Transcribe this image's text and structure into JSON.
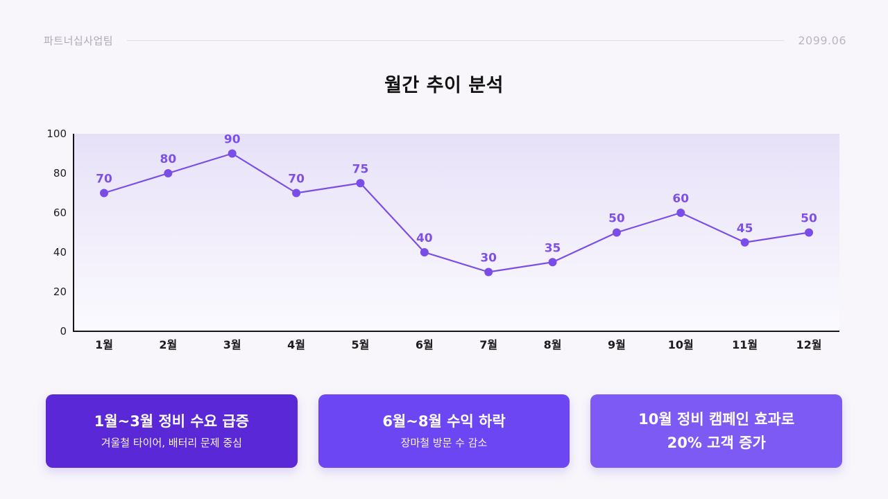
{
  "header": {
    "team": "파트너십사업팀",
    "date": "2099.06"
  },
  "title": "월간 추이 분석",
  "chart_data": {
    "type": "line",
    "title": "월간 추이 분석",
    "categories": [
      "1월",
      "2월",
      "3월",
      "4월",
      "5월",
      "6월",
      "7월",
      "8월",
      "9월",
      "10월",
      "11월",
      "12월"
    ],
    "values": [
      70,
      80,
      90,
      70,
      75,
      40,
      30,
      35,
      50,
      60,
      45,
      50
    ],
    "xlabel": "",
    "ylabel": "",
    "ylim": [
      0,
      100
    ],
    "yticks": [
      0,
      20,
      40,
      60,
      80,
      100
    ],
    "grid": false,
    "legend": false,
    "line_color": "#7B4DE8",
    "point_color": "#7B4DE8",
    "label_color": "#7E50E8",
    "axis_color": "#141414",
    "tick_color": "#1c1c1c",
    "plot_bg_top": "#E7E1F8",
    "plot_bg_bottom": "#FBFAFE"
  },
  "cards": [
    {
      "title": "1월~3월 정비 수요 급증",
      "subtitle": "겨울철 타이어, 배터리 문제 중심",
      "bg": "#5A28D6"
    },
    {
      "title": "6월~8월 수익 하락",
      "subtitle": "장마철 방문 수 감소",
      "bg": "#6C46F2"
    },
    {
      "title": "10월 정비 캠페인 효과로",
      "title2": "20% 고객 증가",
      "bg": "#7E5AF4"
    }
  ]
}
